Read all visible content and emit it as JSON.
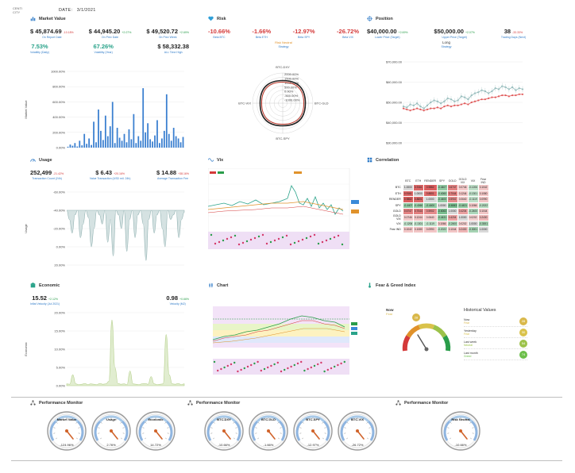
{
  "header": {
    "logo_text": "CENTI CITY",
    "date_label": "DATE:",
    "date_value": "3/1/2021"
  },
  "market_value": {
    "title": "Market Value",
    "stats_row1": [
      {
        "value": "$ 45,874.69",
        "change": "-10.18%",
        "change_color": "#d43a3a",
        "label": "On Report Date"
      },
      {
        "value": "$ 44,945.20",
        "change": "+2.07%",
        "change_color": "#2a9d4a",
        "label": "On Prev Date"
      },
      {
        "value": "$ 49,520.72",
        "change": "+2.69%",
        "change_color": "#2a9d4a",
        "label": "On Prev Week"
      }
    ],
    "stats_row2": [
      {
        "value": "7.53%",
        "value_color": "#2aa38a",
        "label": "Volatility (Daily)"
      },
      {
        "value": "67.26%",
        "value_color": "#2aa38a",
        "label": "Volatility (Year)"
      },
      {
        "value": "$ 58,332.38",
        "value_color": "#222222",
        "label": "ALL Time High"
      }
    ],
    "ylabel": "Market Value",
    "yticks": [
      "0.00%",
      "200.00%",
      "400.00%",
      "600.00%",
      "800.00%",
      "1000.00%"
    ],
    "chart_data": {
      "type": "bar",
      "ylabel": "Market Value",
      "ylim": [
        0,
        1000
      ],
      "values": [
        12,
        40,
        25,
        60,
        15,
        90,
        30,
        180,
        50,
        120,
        35,
        340,
        70,
        500,
        220,
        100,
        420,
        150,
        280,
        600,
        60,
        260,
        130,
        90,
        180,
        70,
        240,
        110,
        440,
        60,
        150,
        90,
        780,
        200,
        320,
        110,
        80,
        160,
        360,
        60,
        120,
        220,
        700,
        180,
        90,
        260,
        150,
        120,
        70,
        140
      ]
    }
  },
  "risk": {
    "title": "Risk",
    "stats": [
      {
        "value": "-10.66%",
        "value_color": "#d43a3a",
        "label": "Beta BTC"
      },
      {
        "value": "-1.66%",
        "value_color": "#d43a3a",
        "label": "Beta ETH"
      },
      {
        "value": "-12.97%",
        "value_color": "#d43a3a",
        "label": "Beta SPY"
      },
      {
        "value": "-26.72%",
        "value_color": "#d43a3a",
        "label": "Beta VIX"
      }
    ],
    "risk_label": "Risk Neutral",
    "risk_sub": "Strategy",
    "radar_axes": [
      "BTC-DXY",
      "BTC-GLD",
      "BTC-SPY",
      "BTC-VIX"
    ],
    "radar_ticks": [
      "2000.00%",
      "1500.00%",
      "1000.00%",
      "500.00%",
      "0.00%",
      "-500.00%",
      "-1000.00%"
    ],
    "chart_data": {
      "type": "radar",
      "axes": [
        "BTC-DXY",
        "BTC-GLD",
        "BTC-SPY",
        "BTC-VIX"
      ],
      "series": [
        {
          "values": [
            1500,
            1500,
            1500,
            1500
          ]
        }
      ]
    }
  },
  "position": {
    "title": "Position",
    "stats": [
      {
        "value": "$40,000.00",
        "change": "+2.69%",
        "change_color": "#2a9d4a",
        "label": "Lower Price (Target)"
      },
      {
        "value": "$50,000.00",
        "change": "+2.07%",
        "change_color": "#2a9d4a",
        "label": "Upper Price (Target)"
      },
      {
        "value": "38",
        "change": "-33.33%",
        "change_color": "#d43a3a",
        "label": "Trading Days (Next)"
      }
    ],
    "side_label": "Long",
    "side_sub": "Strategy",
    "yticks": [
      "$30,000.00",
      "$40,000.00",
      "$50,000.00",
      "$60,000.00",
      "$70,000.00"
    ],
    "chart_data": {
      "type": "line",
      "ylim": [
        30000,
        70000
      ],
      "series": [
        {
          "name": "",
          "values": [
            48000,
            47500,
            49000,
            48500,
            49500,
            48000,
            47000,
            48500,
            50000,
            51000,
            50500,
            49500,
            50500,
            52000,
            51500,
            50500,
            51000,
            53000,
            52500,
            51500,
            53500,
            54500,
            55000,
            56000,
            55500,
            54500,
            55500,
            57000,
            56500,
            58000,
            57500,
            56500,
            57500,
            56000,
            57000,
            56500
          ]
        },
        {
          "name": "",
          "values": [
            47000,
            46500,
            46000,
            46500,
            47000,
            46500,
            46000,
            46500,
            47000,
            47000,
            47500,
            47000,
            48000,
            48500,
            48000,
            48500,
            48500,
            49000,
            49500,
            49000,
            50000,
            50500,
            51000,
            51500,
            51500,
            52000,
            52500,
            52500,
            53000,
            53500,
            53500,
            53000,
            53500,
            53500,
            54000,
            54000
          ]
        }
      ]
    }
  },
  "usage": {
    "title": "Usage",
    "stats": [
      {
        "value": "252,499",
        "change": "-21.42%",
        "change_color": "#d43a3a",
        "label": "Transaction Count (24h)"
      },
      {
        "value": "$ 6.43",
        "change": "+20.16%",
        "change_color": "#d43a3a",
        "label": "Value Transaction (USD mil. 24h)"
      },
      {
        "value": "$ 14.88",
        "change": "+38.16%",
        "change_color": "#d43a3a",
        "label": "Average Transaction Fee"
      }
    ],
    "ylabel": "Usage",
    "yticks": [
      "20.00%",
      "0.00%",
      "-20.00%",
      "-40.00%",
      "-60.00%"
    ],
    "chart_data": {
      "type": "area",
      "ylabel": "Usage",
      "ylim": [
        -60,
        20
      ],
      "values": [
        0,
        -10,
        -25,
        -5,
        0,
        -30,
        -15,
        0,
        -8,
        -40,
        -20,
        0,
        -5,
        -15,
        0,
        -35,
        -10,
        -50,
        0,
        -5,
        -20,
        0,
        -45,
        -10,
        0,
        -30,
        -5,
        0,
        -15,
        -55,
        -10,
        0,
        -25,
        -5,
        0,
        -20,
        -40,
        0,
        -10,
        -5,
        0,
        -30,
        -10,
        -2
      ]
    }
  },
  "vix": {
    "title": "Vix"
  },
  "correlation": {
    "title": "Correlation",
    "columns": [
      "BTC",
      "ETH",
      "RENDER",
      "SPY",
      "GOLD",
      "GOLD VIX",
      "VIX",
      "Fear IND"
    ],
    "rows": [
      {
        "label": "BTC",
        "cells": [
          "1.0000",
          "0.9161",
          "0.9862",
          "-0.4407",
          "0.6747",
          "0.0746",
          "-0.1206",
          "0.1042"
        ]
      },
      {
        "label": "ETH",
        "cells": [
          "0.9161",
          "1.0000",
          "0.8801",
          "-0.4060",
          "0.7044",
          "0.1244",
          "-0.1301",
          "0.1080"
        ]
      },
      {
        "label": "RENDER",
        "cells": [
          "0.9862",
          "0.8801",
          "1.0000",
          "-0.4400",
          "0.5902",
          "0.0640",
          "-0.1119",
          "0.0990"
        ]
      },
      {
        "label": "SPY",
        "cells": [
          "-0.4407",
          "-0.4060",
          "-0.4400",
          "1.0000",
          "-0.6063",
          "-0.4431",
          "0.1066",
          "-0.2022"
        ]
      },
      {
        "label": "GOLD",
        "cells": [
          "0.6747",
          "0.7044",
          "0.5902",
          "-0.6063",
          "1.0000",
          "0.4204",
          "-0.2400",
          "0.1044"
        ]
      },
      {
        "label": "GOLD VIX",
        "cells": [
          "0.0746",
          "0.1244",
          "0.0640",
          "-0.4431",
          "0.4204",
          "1.0000",
          "0.0202",
          "0.2430"
        ]
      },
      {
        "label": "VIX",
        "cells": [
          "-0.1206",
          "-0.1301",
          "-0.1119",
          "0.1066",
          "-0.2400",
          "0.0202",
          "1.0000",
          "-0.3001"
        ]
      },
      {
        "label": "Fear IND",
        "cells": [
          "0.1042",
          "0.1080",
          "0.0990",
          "-0.2022",
          "0.1044",
          "0.2430",
          "-0.3001",
          "1.0000"
        ]
      }
    ]
  },
  "economic": {
    "title": "Economic",
    "stats": [
      {
        "value": "15.52",
        "change": "+2.12%",
        "change_color": "#2a9d4a",
        "label": "Inflat Velocity (Jul 2021)"
      },
      {
        "value": "0.98",
        "change": "+0.66%",
        "change_color": "#2a9d4a",
        "label": "Velocity (M2)"
      }
    ],
    "ylabel": "Economic",
    "yticks": [
      "0.00%",
      "5.00%",
      "10.00%",
      "15.00%",
      "20.00%"
    ],
    "chart_data": {
      "type": "area",
      "ylabel": "Economic",
      "ylim": [
        0,
        20
      ],
      "values": [
        0.5,
        0.4,
        3,
        0.5,
        0.3,
        0.4,
        0.6,
        0.3,
        0.5,
        0.4,
        0.3,
        0.6,
        0.4,
        0.5,
        1.2,
        18,
        5,
        0.6,
        0.4,
        0.5,
        0.3,
        4,
        0.5,
        0.4,
        0.3,
        0.5,
        0.6,
        0.4,
        2.5,
        0.5,
        0.3,
        0.4,
        0.5,
        14,
        3,
        0.5,
        0.4,
        0.6,
        0.3,
        0.5
      ]
    }
  },
  "chart_panel": {
    "title": "Chart"
  },
  "fear_greed": {
    "title": "Fear & Greed Index",
    "now_label": "Now",
    "now_value": "Fear",
    "gauge_value": "28",
    "historical_title": "Historical Values",
    "historical": [
      {
        "label": "Now",
        "sub": "Fear",
        "value": "28",
        "color": "#d9b84a"
      },
      {
        "label": "Yesterday",
        "sub": "Fear",
        "value": "30",
        "color": "#d9c24a"
      },
      {
        "label": "Last week",
        "sub": "Neutral",
        "value": "54",
        "color": "#9cc24a"
      },
      {
        "label": "Last month",
        "sub": "Greed",
        "value": "74",
        "color": "#6cbf4a"
      }
    ]
  },
  "monitors": [
    {
      "title": "Performance Monitor",
      "gauges": [
        {
          "name": "Market Value",
          "value": "-124.96%"
        },
        {
          "name": "Usage",
          "value": "2.76%"
        },
        {
          "name": "Economic",
          "value": "14.72%"
        }
      ]
    },
    {
      "title": "Performance Monitor",
      "gauges": [
        {
          "name": "BTC-DXY",
          "value": "-10.66%"
        },
        {
          "name": "BTC-GLD",
          "value": "-1.66%"
        },
        {
          "name": "BTC-SPY",
          "value": "-12.97%"
        },
        {
          "name": "BTC-VIX",
          "value": "-26.72%"
        }
      ]
    },
    {
      "title": "Performance Monitor",
      "gauges": [
        {
          "name": "Risk Neutral",
          "value": "-10.66%"
        }
      ]
    }
  ]
}
